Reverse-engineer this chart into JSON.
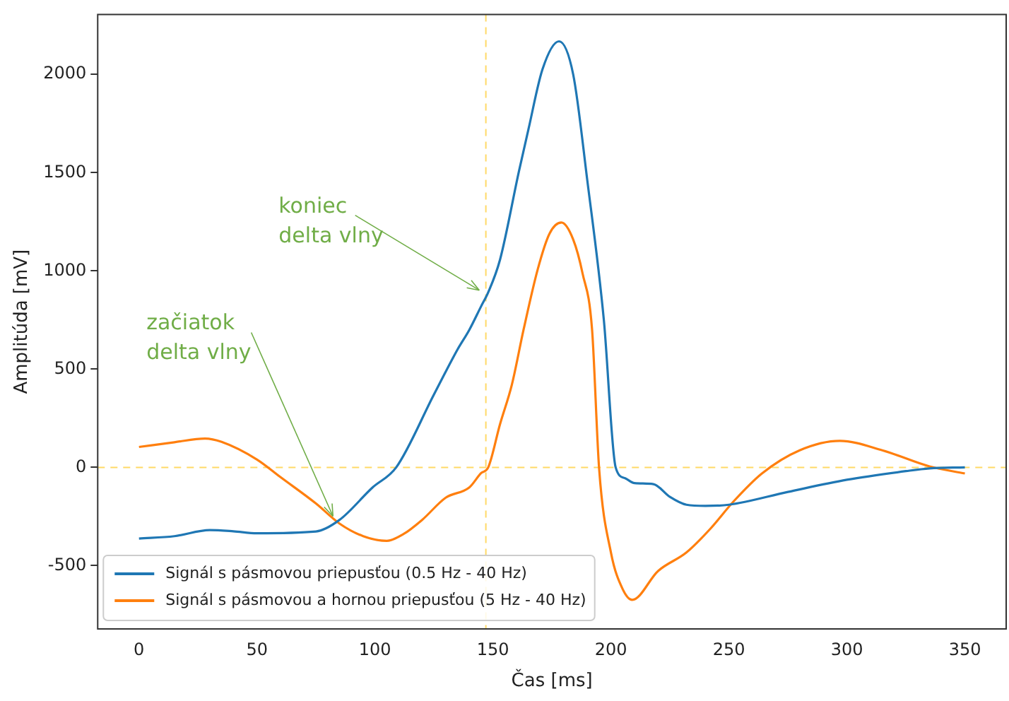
{
  "chart_data": {
    "type": "line",
    "xlabel": "Čas [ms]",
    "ylabel": "Amplitúda [mV]",
    "xlim": [
      -17.5,
      367.5
    ],
    "ylim": [
      -822,
      2305
    ],
    "xticks": [
      0,
      50,
      100,
      150,
      200,
      250,
      300,
      350
    ],
    "yticks": [
      -500,
      0,
      500,
      1000,
      1500,
      2000
    ],
    "grid": false,
    "legend": "bottom left",
    "line_style": "solid",
    "marker": "none",
    "series": [
      {
        "name": "Signál s pásmovou priepusťou (0.5 Hz - 40 Hz)",
        "color": "#1f77b4",
        "x": [
          0,
          15,
          30,
          40,
          50,
          75,
          85,
          99,
          109,
          125,
          135,
          140,
          145,
          148,
          153,
          161,
          165,
          171,
          178,
          184,
          190,
          197,
          202,
          206,
          210,
          218,
          225,
          232,
          240,
          250,
          275,
          300,
          325,
          335,
          350
        ],
        "values": [
          -362,
          -350,
          -319,
          -325,
          -335,
          -326,
          -267,
          -102,
          0,
          371,
          600,
          700,
          820,
          891,
          1057,
          1506,
          1718,
          2026,
          2168,
          2000,
          1459,
          750,
          0,
          -55,
          -80,
          -85,
          -150,
          -190,
          -196,
          -190,
          -125,
          -63,
          -19,
          -5,
          0
        ]
      },
      {
        "name": "Signál s pásmovou a hornou priepusťou (5 Hz - 40 Hz)",
        "color": "#ff7f0e",
        "x": [
          0,
          15,
          28,
          35,
          50,
          60,
          75,
          85,
          95,
          105,
          112,
          120,
          130,
          140,
          145,
          148,
          153,
          158,
          163,
          169,
          174,
          179,
          184,
          188,
          192,
          195,
          200,
          205,
          209,
          220,
          232,
          242,
          252,
          264,
          280,
          297,
          315,
          335,
          350
        ],
        "values": [
          104,
          128,
          147,
          130,
          40,
          -50,
          -184,
          -286,
          -350,
          -374,
          -340,
          -267,
          -154,
          -102,
          -29,
          0,
          220,
          420,
          702,
          1009,
          1190,
          1246,
          1160,
          986,
          702,
          -7,
          -433,
          -620,
          -674,
          -527,
          -433,
          -314,
          -173,
          -31,
          87,
          135,
          87,
          5,
          -31
        ]
      }
    ],
    "ref_lines": [
      {
        "axis": "y",
        "value": 0,
        "color": "#ffd966",
        "line_style": "dashed"
      },
      {
        "axis": "x",
        "value": 147,
        "color": "#ffd966",
        "line_style": "dashed"
      }
    ],
    "annotations": [
      {
        "text": "koniec\ndelta vlny",
        "x": 146,
        "y": 880
      },
      {
        "text": "začiatok\ndelta vlny",
        "x": 84,
        "y": -270
      }
    ]
  }
}
